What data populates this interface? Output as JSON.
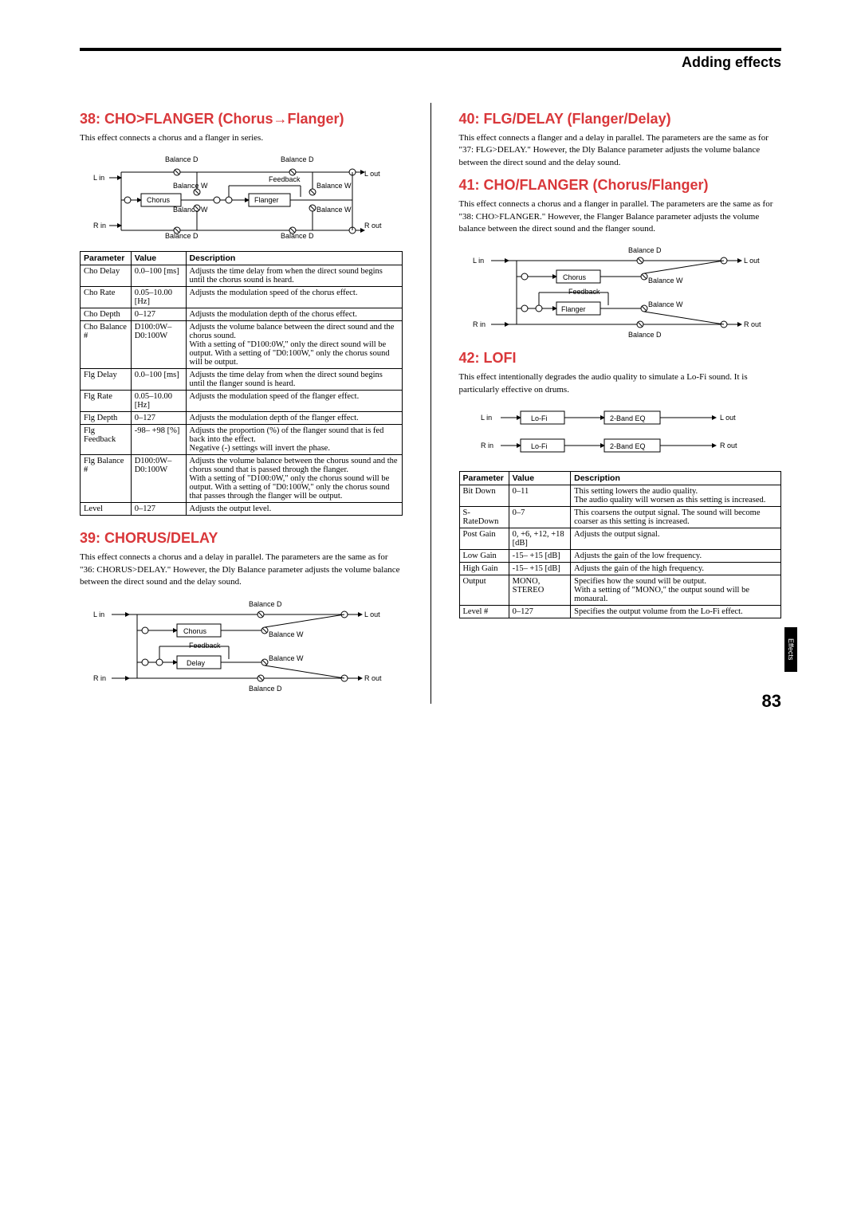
{
  "header": {
    "title": "Adding effects"
  },
  "page_number": "83",
  "side_tab": "Effects",
  "sec38": {
    "title": "38: CHO>FLANGER (Chorus→Flanger)",
    "desc": "This effect connects a chorus and a flanger in series.",
    "th_param": "Parameter",
    "th_value": "Value",
    "th_desc": "Description",
    "rows": [
      {
        "p": "Cho Delay",
        "v": "0.0–100 [ms]",
        "d": "Adjusts the time delay from when the direct sound begins until the chorus sound is heard."
      },
      {
        "p": "Cho Rate",
        "v": "0.05–10.00 [Hz]",
        "d": "Adjusts the modulation speed of the chorus effect."
      },
      {
        "p": "Cho Depth",
        "v": "0–127",
        "d": "Adjusts the modulation depth of the chorus effect."
      },
      {
        "p": "Cho Balance #",
        "v": "D100:0W–D0:100W",
        "d": "Adjusts the volume balance between the direct sound and the chorus sound.\nWith a setting of \"D100:0W,\" only the direct sound will be output. With a setting of \"D0:100W,\" only the chorus sound will be output."
      },
      {
        "p": "Flg Delay",
        "v": "0.0–100 [ms]",
        "d": "Adjusts the time delay from when the direct sound begins until the flanger sound is heard."
      },
      {
        "p": "Flg Rate",
        "v": "0.05–10.00 [Hz]",
        "d": "Adjusts the modulation speed of the flanger effect."
      },
      {
        "p": "Flg Depth",
        "v": "0–127",
        "d": "Adjusts the modulation depth of the flanger effect."
      },
      {
        "p": "Flg Feedback",
        "v": "-98– +98 [%]",
        "d": "Adjusts the proportion (%) of the flanger sound that is fed back into the effect.\nNegative (-) settings will invert the phase."
      },
      {
        "p": "Flg Balance #",
        "v": "D100:0W–D0:100W",
        "d": "Adjusts the volume balance between the chorus sound and the chorus sound that is passed through the flanger.\nWith a setting of \"D100:0W,\" only the chorus sound will be output. With a setting of \"D0:100W,\" only the chorus sound that passes through the flanger will be output."
      },
      {
        "p": "Level",
        "v": "0–127",
        "d": "Adjusts the output level."
      }
    ]
  },
  "sec39": {
    "title": "39: CHORUS/DELAY",
    "desc": "This effect connects a chorus and a delay in parallel. The parameters are the same as for \"36: CHORUS>DELAY.\" However, the Dly Balance parameter adjusts the volume balance between the direct sound and the delay sound."
  },
  "sec40": {
    "title": "40: FLG/DELAY (Flanger/Delay)",
    "desc": "This effect connects a flanger and a delay in parallel. The parameters are the same as for \"37: FLG>DELAY.\" However, the Dly Balance parameter adjusts the volume balance between the direct sound and the delay sound."
  },
  "sec41": {
    "title": "41: CHO/FLANGER (Chorus/Flanger)",
    "desc": "This effect connects a chorus and a flanger in parallel. The parameters are the same as for \"38: CHO>FLANGER.\" However, the Flanger Balance parameter adjusts the volume balance between the direct sound and the flanger sound."
  },
  "sec42": {
    "title": "42: LOFI",
    "desc": "This effect intentionally degrades the audio quality to simulate a Lo-Fi sound. It is particularly effective on drums.",
    "th_param": "Parameter",
    "th_value": "Value",
    "th_desc": "Description",
    "rows": [
      {
        "p": "Bit Down",
        "v": "0–11",
        "d": "This setting lowers the audio quality.\nThe audio quality will worsen as this setting is increased."
      },
      {
        "p": "S-RateDown",
        "v": "0–7",
        "d": "This coarsens the output signal. The sound will become coarser as this setting is increased."
      },
      {
        "p": "Post Gain",
        "v": "0, +6, +12, +18 [dB]",
        "d": "Adjusts the output signal."
      },
      {
        "p": "Low Gain",
        "v": "-15– +15 [dB]",
        "d": "Adjusts the gain of the low frequency."
      },
      {
        "p": "High Gain",
        "v": "-15– +15 [dB]",
        "d": "Adjusts the gain of the high frequency."
      },
      {
        "p": "Output",
        "v": "MONO, STEREO",
        "d": "Specifies how the sound will be output.\nWith a setting of \"MONO,\" the output sound will be monaural."
      },
      {
        "p": "Level #",
        "v": "0–127",
        "d": "Specifies the output volume from the Lo-Fi effect."
      }
    ]
  },
  "dia_labels": {
    "lin": "L in",
    "rin": "R in",
    "lout": "L out",
    "rout": "R out",
    "balanceD": "Balance D",
    "balanceW": "Balance W",
    "feedback": "Feedback",
    "chorus": "Chorus",
    "flanger": "Flanger",
    "delay": "Delay",
    "lofi": "Lo-Fi",
    "eq": "2-Band EQ"
  }
}
